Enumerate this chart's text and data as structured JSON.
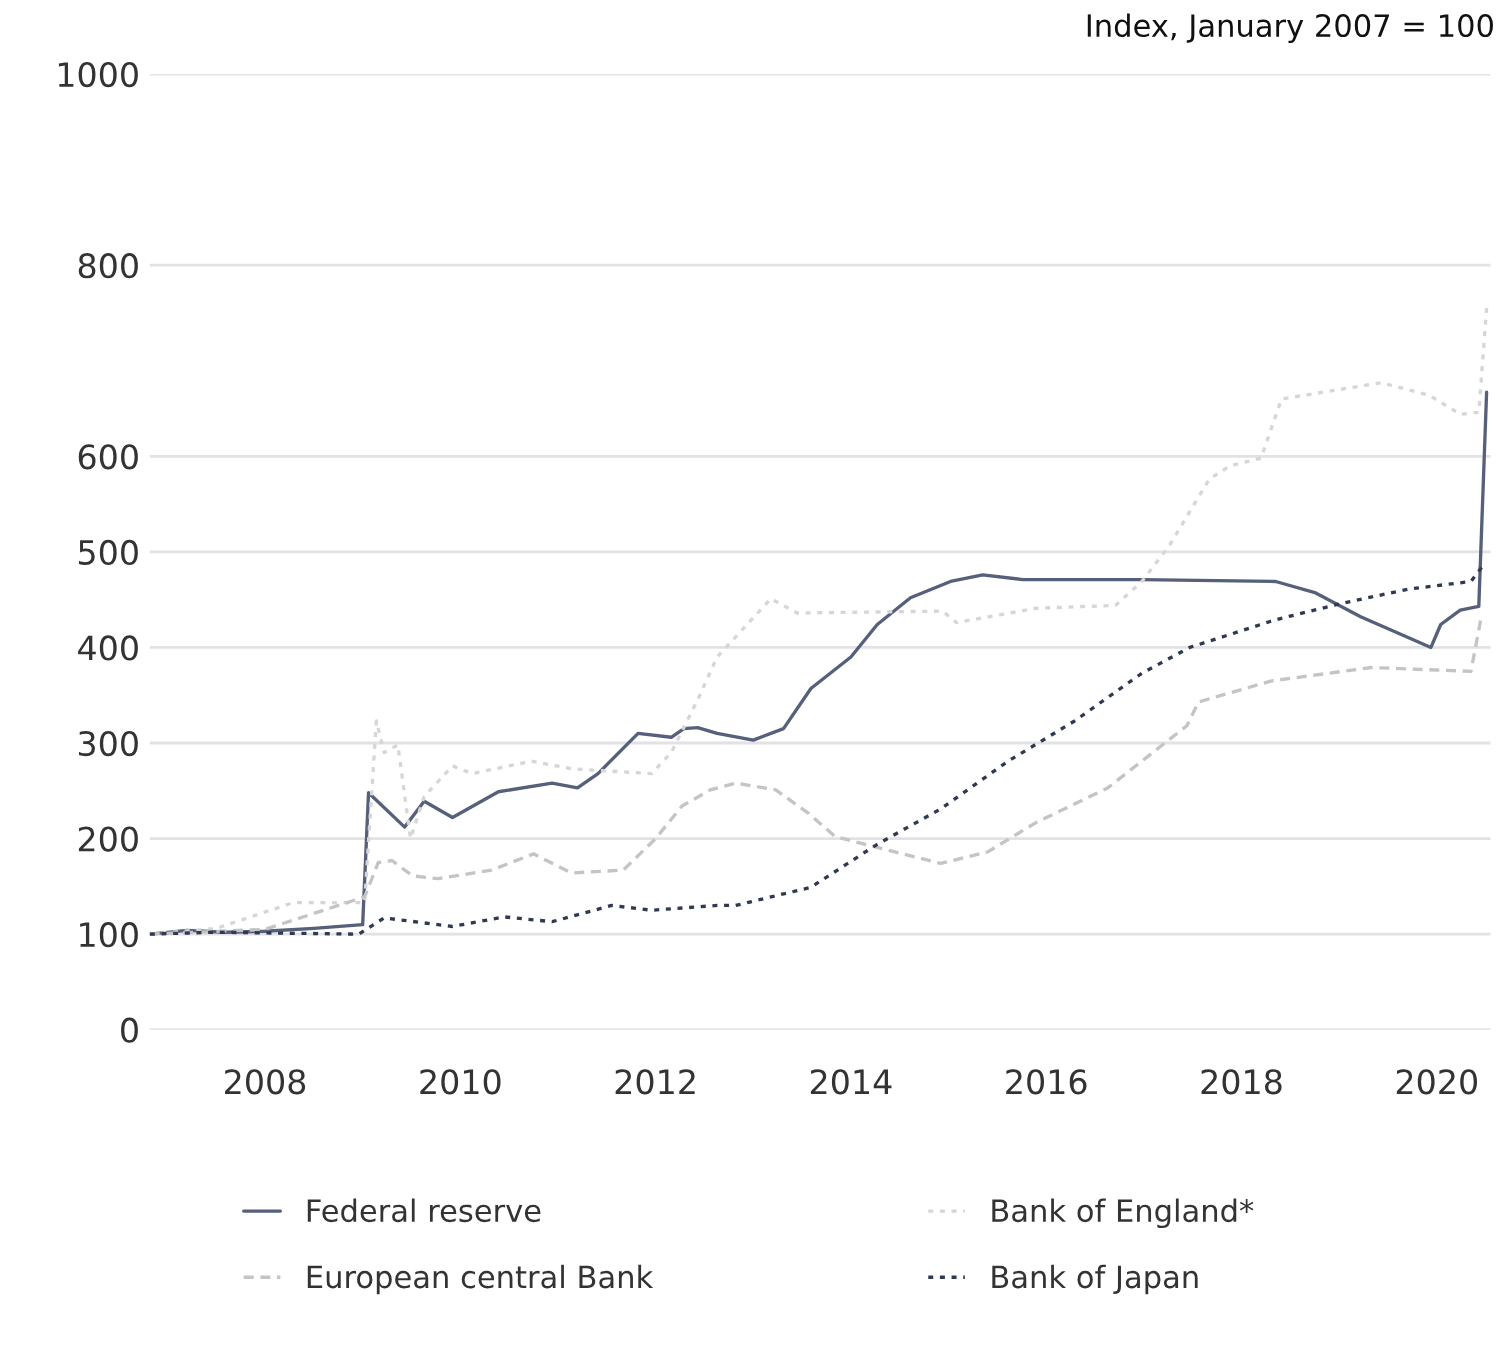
{
  "chart_data": {
    "type": "line",
    "annotations": [
      "Index, January 2007 = 100"
    ],
    "xlim": [
      2006.82,
      2020.55
    ],
    "xticks": [
      2008,
      2010,
      2012,
      2014,
      2016,
      2018,
      2020
    ],
    "ylim": [
      0,
      1000
    ],
    "yticks": [
      0,
      100,
      200,
      300,
      400,
      500,
      600,
      800,
      1000
    ],
    "grid": "y",
    "legend": "bottom",
    "series": [
      {
        "name": "Federal reserve",
        "color": "#56607a",
        "line_style": "solid",
        "x": [
          2006.82,
          2007.2,
          2007.6,
          2008.0,
          2008.5,
          2009.0,
          2009.06,
          2009.43,
          2009.63,
          2009.92,
          2010.39,
          2010.94,
          2011.2,
          2011.41,
          2011.82,
          2012.16,
          2012.29,
          2012.43,
          2012.63,
          2013.0,
          2013.31,
          2013.59,
          2014.0,
          2014.27,
          2014.61,
          2015.02,
          2015.35,
          2015.76,
          2016.98,
          2018.35,
          2018.76,
          2019.22,
          2019.94,
          2020.04,
          2020.24,
          2020.43,
          2020.51
        ],
        "values": [
          100,
          104,
          102,
          103,
          106,
          110,
          248,
          212,
          239,
          222,
          249,
          258,
          253,
          268,
          310,
          306,
          315,
          316,
          310,
          303,
          315,
          357,
          390,
          424,
          452,
          469,
          476,
          471,
          471,
          469,
          457,
          432,
          400,
          424,
          439,
          443,
          667
        ]
      },
      {
        "name": "Bank of England*",
        "color": "#d6d6d6",
        "line_style": "dotted",
        "x": [
          2006.82,
          2007.5,
          2008.29,
          2009.02,
          2009.14,
          2009.22,
          2009.36,
          2009.49,
          2009.63,
          2009.92,
          2010.12,
          2010.73,
          2011.14,
          2011.96,
          2012.16,
          2012.43,
          2012.63,
          2013.18,
          2013.45,
          2014.94,
          2015.08,
          2015.9,
          2016.71,
          2016.98,
          2017.27,
          2017.67,
          2017.88,
          2018.2,
          2018.41,
          2019.43,
          2019.92,
          2020.24,
          2020.43,
          2020.51
        ],
        "values": [
          100,
          106,
          133,
          133,
          323,
          290,
          298,
          200,
          244,
          276,
          268,
          281,
          273,
          268,
          290,
          345,
          390,
          451,
          436,
          438,
          426,
          441,
          444,
          469,
          508,
          576,
          590,
          598,
          660,
          677,
          664,
          644,
          646,
          755
        ]
      },
      {
        "name": "European central Bank",
        "color": "#c4c4c4",
        "line_style": "dashed",
        "x": [
          2006.82,
          2008.0,
          2009.02,
          2009.16,
          2009.3,
          2009.51,
          2009.77,
          2010.32,
          2010.75,
          2011.14,
          2011.67,
          2012.0,
          2012.27,
          2012.56,
          2012.82,
          2013.23,
          2013.57,
          2013.84,
          2014.45,
          2014.92,
          2015.4,
          2015.9,
          2016.63,
          2017.44,
          2017.56,
          2018.31,
          2019.33,
          2020.35,
          2020.45
        ],
        "values": [
          100,
          105,
          139,
          175,
          177,
          161,
          158,
          167,
          184,
          164,
          167,
          200,
          234,
          251,
          258,
          251,
          226,
          202,
          186,
          174,
          186,
          217,
          253,
          318,
          343,
          365,
          379,
          375,
          429
        ]
      },
      {
        "name": "Bank of Japan",
        "color": "#2f3a50",
        "line_style": "dotted",
        "x": [
          2006.82,
          2007.5,
          2008.2,
          2008.96,
          2009.22,
          2009.92,
          2010.45,
          2010.94,
          2011.55,
          2011.96,
          2012.63,
          2012.82,
          2013.59,
          2014.27,
          2014.92,
          2015.61,
          2016.29,
          2016.98,
          2017.47,
          2018.35,
          2019.02,
          2019.71,
          2020.35,
          2020.49
        ],
        "values": [
          100,
          102,
          101,
          100,
          117,
          108,
          118,
          113,
          130,
          125,
          130,
          130,
          149,
          194,
          231,
          281,
          323,
          373,
          400,
          429,
          446,
          461,
          469,
          488
        ]
      }
    ]
  }
}
